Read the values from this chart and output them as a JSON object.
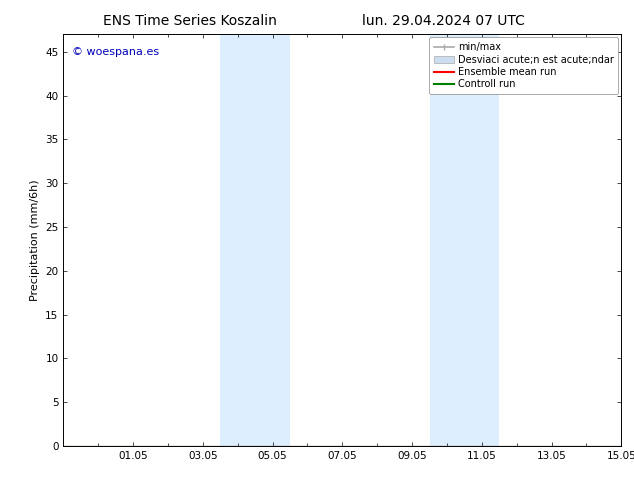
{
  "title_left": "ENS Time Series Koszalin",
  "title_right": "lun. 29.04.2024 07 UTC",
  "ylabel": "Precipitation (mm/6h)",
  "xlim": [
    0,
    16
  ],
  "ylim": [
    0,
    47
  ],
  "yticks": [
    0,
    5,
    10,
    15,
    20,
    25,
    30,
    35,
    40,
    45
  ],
  "xtick_labels": [
    "01.05",
    "03.05",
    "05.05",
    "07.05",
    "09.05",
    "11.05",
    "13.05",
    "15.05"
  ],
  "xtick_positions": [
    2,
    4,
    6,
    8,
    10,
    12,
    14,
    16
  ],
  "minor_xtick_positions": [
    1,
    3,
    5,
    7,
    9,
    11,
    13,
    15
  ],
  "shaded_bands": [
    {
      "x_start": 4.5,
      "x_end": 6.5
    },
    {
      "x_start": 10.5,
      "x_end": 12.5
    }
  ],
  "shade_color": "#ddeeff",
  "bg_color": "#ffffff",
  "legend_label_minmax": "min/max",
  "legend_label_std": "Desviaci acute;n est acute;ndar",
  "legend_label_ens": "Ensemble mean run",
  "legend_label_ctrl": "Controll run",
  "color_minmax": "#aaaaaa",
  "color_std": "#ccddef",
  "color_ens": "#ff0000",
  "color_ctrl": "#008000",
  "watermark": "© woespana.es",
  "watermark_color": "#0000bb",
  "title_fontsize": 10,
  "tick_fontsize": 7.5,
  "ylabel_fontsize": 8,
  "watermark_fontsize": 8,
  "legend_fontsize": 7
}
